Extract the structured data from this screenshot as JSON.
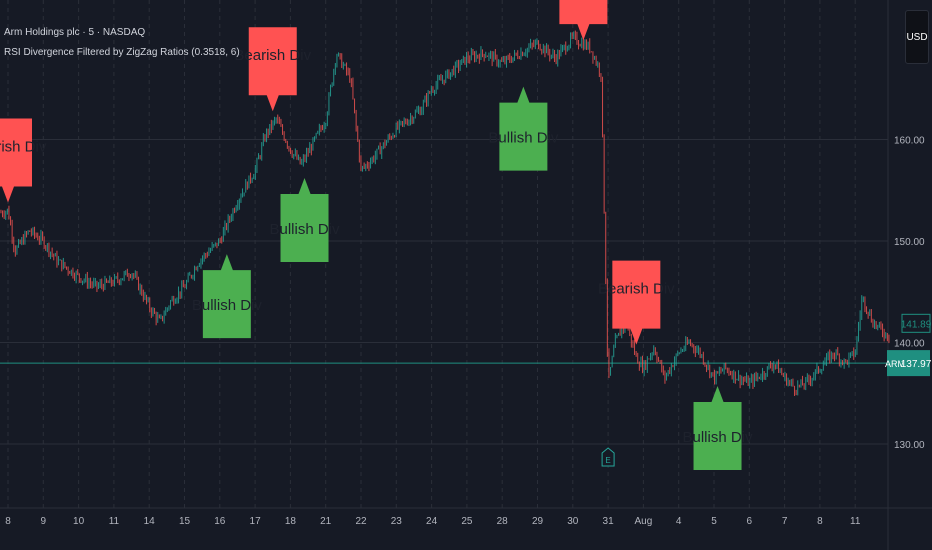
{
  "header": {
    "title": "Arm Holdings plc · 5 · NASDAQ",
    "indicator": "RSI Divergence Filtered by ZigZag Ratios (0.3518, 6)"
  },
  "currency_button": "USD",
  "colors": {
    "background": "#161a25",
    "grid": "#2a2e39",
    "up": "#26a69a",
    "down": "#ef5350",
    "bearish": "#ff5252",
    "bullish": "#4caf50",
    "last_price_line": "#1f8f80",
    "label_text": "#1e222d"
  },
  "chart_data": {
    "type": "candlestick",
    "symbol_label": "ARM",
    "ylim": [
      125,
      180
    ],
    "y_ticks": [
      "130.00",
      "140.00",
      "150.00",
      "160.00"
    ],
    "x_ticks": [
      "8",
      "9",
      "10",
      "11",
      "14",
      "15",
      "16",
      "17",
      "18",
      "21",
      "22",
      "23",
      "24",
      "25",
      "28",
      "29",
      "30",
      "31",
      "Aug",
      "4",
      "5",
      "6",
      "7",
      "8",
      "11"
    ],
    "price_path": [
      [
        -1.0,
        150.5
      ],
      [
        -0.5,
        152.5
      ],
      [
        0.0,
        153.0
      ],
      [
        0.2,
        149.0
      ],
      [
        0.6,
        151.0
      ],
      [
        1.0,
        150.0
      ],
      [
        1.4,
        148.0
      ],
      [
        2.0,
        146.5
      ],
      [
        2.5,
        145.5
      ],
      [
        3.0,
        146.0
      ],
      [
        3.5,
        147.0
      ],
      [
        4.0,
        143.5
      ],
      [
        4.3,
        142.0
      ],
      [
        4.6,
        144.0
      ],
      [
        5.0,
        145.5
      ],
      [
        5.4,
        148.0
      ],
      [
        6.0,
        150.0
      ],
      [
        6.5,
        154.0
      ],
      [
        7.0,
        157.0
      ],
      [
        7.3,
        160.5
      ],
      [
        7.6,
        162.0
      ],
      [
        8.0,
        159.0
      ],
      [
        8.3,
        157.5
      ],
      [
        8.7,
        160.0
      ],
      [
        9.0,
        162.0
      ],
      [
        9.3,
        168.5
      ],
      [
        9.7,
        166.0
      ],
      [
        10.0,
        157.0
      ],
      [
        10.3,
        158.0
      ],
      [
        11.0,
        161.0
      ],
      [
        11.7,
        163.0
      ],
      [
        12.0,
        165.0
      ],
      [
        12.5,
        166.5
      ],
      [
        13.0,
        168.0
      ],
      [
        13.5,
        168.5
      ],
      [
        14.0,
        167.5
      ],
      [
        14.5,
        168.5
      ],
      [
        15.0,
        169.5
      ],
      [
        15.5,
        168.0
      ],
      [
        16.0,
        170.0
      ],
      [
        16.5,
        169.0
      ],
      [
        16.8,
        166.5
      ],
      [
        17.0,
        136.0
      ],
      [
        17.2,
        140.0
      ],
      [
        17.5,
        142.0
      ],
      [
        17.8,
        138.5
      ],
      [
        18.0,
        137.5
      ],
      [
        18.3,
        139.5
      ],
      [
        18.6,
        136.5
      ],
      [
        19.0,
        139.0
      ],
      [
        19.3,
        140.0
      ],
      [
        19.6,
        139.0
      ],
      [
        20.0,
        136.5
      ],
      [
        20.3,
        137.5
      ],
      [
        20.7,
        136.5
      ],
      [
        21.0,
        136.0
      ],
      [
        21.4,
        137.0
      ],
      [
        21.7,
        138.0
      ],
      [
        22.0,
        136.5
      ],
      [
        22.3,
        135.5
      ],
      [
        22.6,
        136.0
      ],
      [
        23.0,
        137.5
      ],
      [
        23.4,
        139.0
      ],
      [
        23.7,
        138.0
      ],
      [
        24.0,
        139.0
      ],
      [
        24.2,
        144.5
      ],
      [
        24.5,
        142.0
      ],
      [
        24.8,
        141.0
      ],
      [
        25.0,
        140.5
      ]
    ],
    "last_price": 137.97,
    "prev_close": 141.89,
    "signals": [
      {
        "type": "bearish",
        "label": "Bearish Div",
        "x": 0.0,
        "price": 153.0
      },
      {
        "type": "bullish",
        "label": "Bullish Div",
        "x": 6.2,
        "price": 149.5
      },
      {
        "type": "bearish",
        "label": "Bearish Div",
        "x": 7.5,
        "price": 162.0
      },
      {
        "type": "bullish",
        "label": "Bullish Div",
        "x": 8.4,
        "price": 157.0
      },
      {
        "type": "bullish",
        "label": "Bullish Div",
        "x": 14.6,
        "price": 166.0
      },
      {
        "type": "bearish",
        "label": "Bearish Div",
        "x": 16.3,
        "price": 169.0
      },
      {
        "type": "bearish",
        "label": "Bearish Div",
        "x": 17.8,
        "price": 139.0
      },
      {
        "type": "bullish",
        "label": "Bullish Div",
        "x": 20.1,
        "price": 136.5
      }
    ],
    "event_marker": {
      "label": "E",
      "x": 17.0
    }
  }
}
